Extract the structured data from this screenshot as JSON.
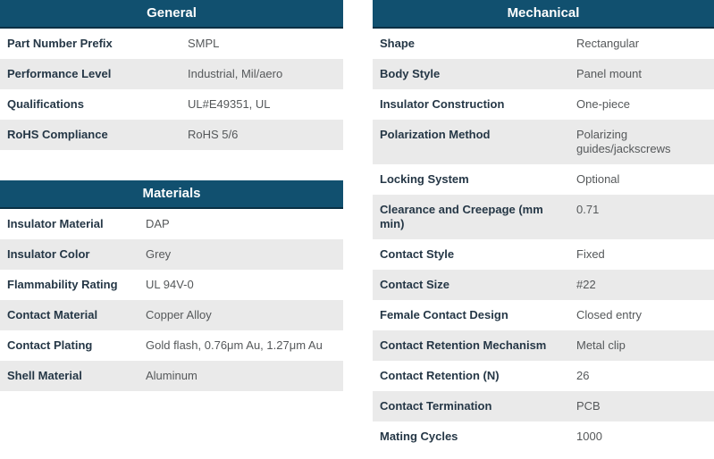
{
  "theme": {
    "header_bg": "#11506F",
    "header_border": "#0A3044",
    "header_text": "#FFFFFF",
    "label_color": "#253746",
    "value_color": "#55585A",
    "row_bg": "#FFFFFF",
    "row_alt_bg": "#EAEAEA"
  },
  "tables": [
    {
      "id": "general",
      "title": "General",
      "label_col_width": 210,
      "rows": [
        {
          "label": "Part Number Prefix",
          "value": "SMPL"
        },
        {
          "label": "Performance Level",
          "value": "Industrial, Mil/aero"
        },
        {
          "label": "Qualifications",
          "value": "UL#E49351, UL"
        },
        {
          "label": "RoHS Compliance",
          "value": "RoHS 5/6"
        }
      ]
    },
    {
      "id": "materials",
      "title": "Materials",
      "label_col_width": 163,
      "rows": [
        {
          "label": "Insulator Material",
          "value": "DAP"
        },
        {
          "label": "Insulator Color",
          "value": "Grey"
        },
        {
          "label": "Flammability Rating",
          "value": "UL 94V-0"
        },
        {
          "label": "Contact Material",
          "value": "Copper Alloy"
        },
        {
          "label": "Contact Plating",
          "value": "Gold flash, 0.76μm Au, 1.27μm Au"
        },
        {
          "label": "Shell Material",
          "value": "Aluminum"
        }
      ]
    },
    {
      "id": "mechanical",
      "title": "Mechanical",
      "label_col_width": 228,
      "rows": [
        {
          "label": "Shape",
          "value": "Rectangular"
        },
        {
          "label": "Body Style",
          "value": "Panel mount"
        },
        {
          "label": "Insulator Construction",
          "value": "One-piece"
        },
        {
          "label": "Polarization Method",
          "value": "Polarizing guides/jackscrews"
        },
        {
          "label": "Locking System",
          "value": "Optional"
        },
        {
          "label": "Clearance and Creepage (mm min)",
          "value": "0.71"
        },
        {
          "label": "Contact Style",
          "value": "Fixed"
        },
        {
          "label": "Contact Size",
          "value": "#22"
        },
        {
          "label": "Female Contact Design",
          "value": "Closed entry"
        },
        {
          "label": "Contact Retention Mechanism",
          "value": "Metal clip"
        },
        {
          "label": "Contact Retention (N)",
          "value": "26"
        },
        {
          "label": "Contact Termination",
          "value": "PCB"
        },
        {
          "label": "Mating Cycles",
          "value": "1000"
        }
      ]
    }
  ]
}
